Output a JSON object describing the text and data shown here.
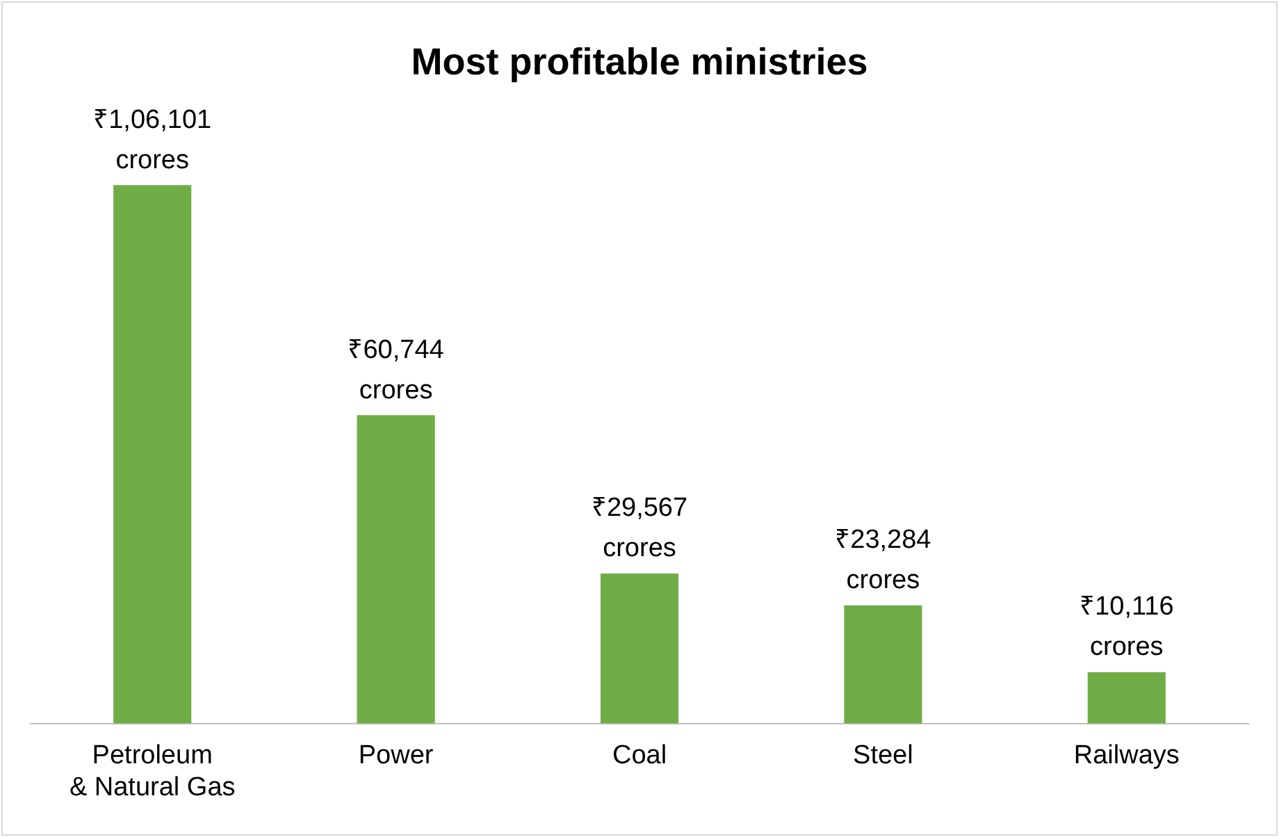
{
  "chart_data": {
    "type": "bar",
    "title": "Most profitable ministries",
    "categories": [
      "Petroleum\n& Natural Gas",
      "Power",
      "Coal",
      "Steel",
      "Railways"
    ],
    "values": [
      106101,
      60744,
      29567,
      23284,
      10116
    ],
    "value_labels": [
      "₹1,06,101\ncrores",
      "₹60,744\ncrores",
      "₹29,567\ncrores",
      "₹23,284\ncrores",
      "₹10,116\ncrores"
    ],
    "color": "#70ad47",
    "grid": false,
    "legend": false
  }
}
